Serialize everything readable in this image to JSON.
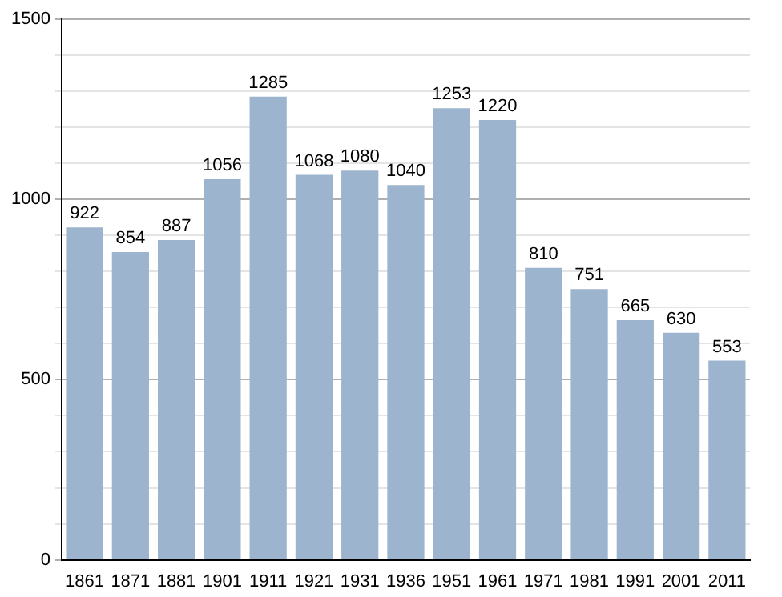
{
  "chart_data": {
    "type": "bar",
    "categories": [
      "1861",
      "1871",
      "1881",
      "1901",
      "1911",
      "1921",
      "1931",
      "1936",
      "1951",
      "1961",
      "1971",
      "1981",
      "1991",
      "2001",
      "2011"
    ],
    "values": [
      922,
      854,
      887,
      1056,
      1285,
      1068,
      1080,
      1040,
      1253,
      1220,
      810,
      751,
      665,
      630,
      553
    ],
    "color": "#9cb4cd",
    "ylim": [
      0,
      1500
    ],
    "yticks": [
      0,
      {
        "value": 100,
        "label": null
      },
      {
        "value": 200,
        "label": null
      },
      {
        "value": 300,
        "label": null
      },
      {
        "value": 400,
        "label": null
      },
      500,
      {
        "value": 600,
        "label": null
      },
      {
        "value": 700,
        "label": null
      },
      {
        "value": 800,
        "label": null
      },
      {
        "value": 900,
        "label": null
      },
      1000,
      {
        "value": 1100,
        "label": null
      },
      {
        "value": 1200,
        "label": null
      },
      {
        "value": 1300,
        "label": null
      },
      {
        "value": 1400,
        "label": null
      },
      1500
    ],
    "grid": "y",
    "data_labels": true
  }
}
